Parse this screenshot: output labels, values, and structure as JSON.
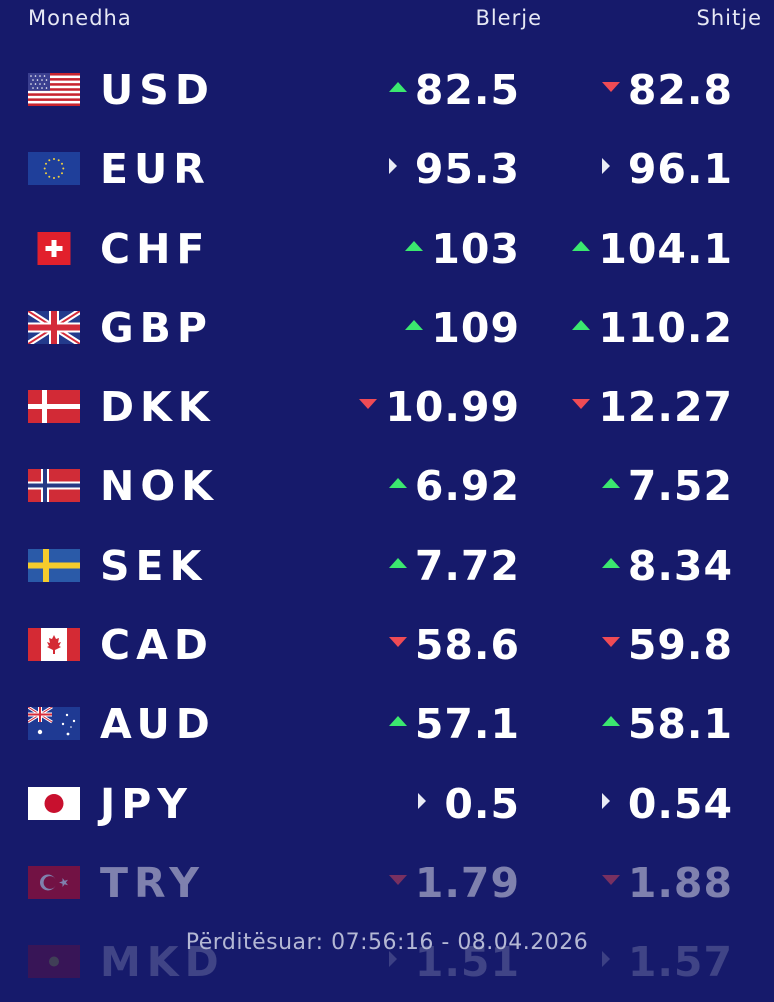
{
  "header": {
    "currency": "Monedha",
    "buy": "Blerje",
    "sell": "Shitje"
  },
  "rows": [
    {
      "code": "USD",
      "flag": "us-flag",
      "buy": "82.5",
      "buy_trend": "up",
      "sell": "82.8",
      "sell_trend": "down"
    },
    {
      "code": "EUR",
      "flag": "eu-flag",
      "buy": "95.3",
      "buy_trend": "flat",
      "sell": "96.1",
      "sell_trend": "flat"
    },
    {
      "code": "CHF",
      "flag": "ch-flag",
      "buy": "103",
      "buy_trend": "up",
      "sell": "104.1",
      "sell_trend": "up"
    },
    {
      "code": "GBP",
      "flag": "gb-flag",
      "buy": "109",
      "buy_trend": "up",
      "sell": "110.2",
      "sell_trend": "up"
    },
    {
      "code": "DKK",
      "flag": "dk-flag",
      "buy": "10.99",
      "buy_trend": "down",
      "sell": "12.27",
      "sell_trend": "down"
    },
    {
      "code": "NOK",
      "flag": "no-flag",
      "buy": "6.92",
      "buy_trend": "up",
      "sell": "7.52",
      "sell_trend": "up"
    },
    {
      "code": "SEK",
      "flag": "se-flag",
      "buy": "7.72",
      "buy_trend": "up",
      "sell": "8.34",
      "sell_trend": "up"
    },
    {
      "code": "CAD",
      "flag": "ca-flag",
      "buy": "58.6",
      "buy_trend": "down",
      "sell": "59.8",
      "sell_trend": "down"
    },
    {
      "code": "AUD",
      "flag": "au-flag",
      "buy": "57.1",
      "buy_trend": "up",
      "sell": "58.1",
      "sell_trend": "up"
    },
    {
      "code": "JPY",
      "flag": "jp-flag",
      "buy": "0.5",
      "buy_trend": "flat",
      "sell": "0.54",
      "sell_trend": "flat"
    },
    {
      "code": "TRY",
      "flag": "tr-flag",
      "buy": "1.79",
      "buy_trend": "down",
      "sell": "1.88",
      "sell_trend": "down"
    },
    {
      "code": "MKD",
      "flag": "mk-flag",
      "buy": "1.51",
      "buy_trend": "flat",
      "sell": "1.57",
      "sell_trend": "flat"
    }
  ],
  "footer": {
    "updated": "Përditësuar: 07:56:16 - 08.04.2026"
  },
  "colors": {
    "background": "#161a6b",
    "up": "#3be86f",
    "down": "#ef4b55",
    "flat": "#e9ebf5"
  }
}
